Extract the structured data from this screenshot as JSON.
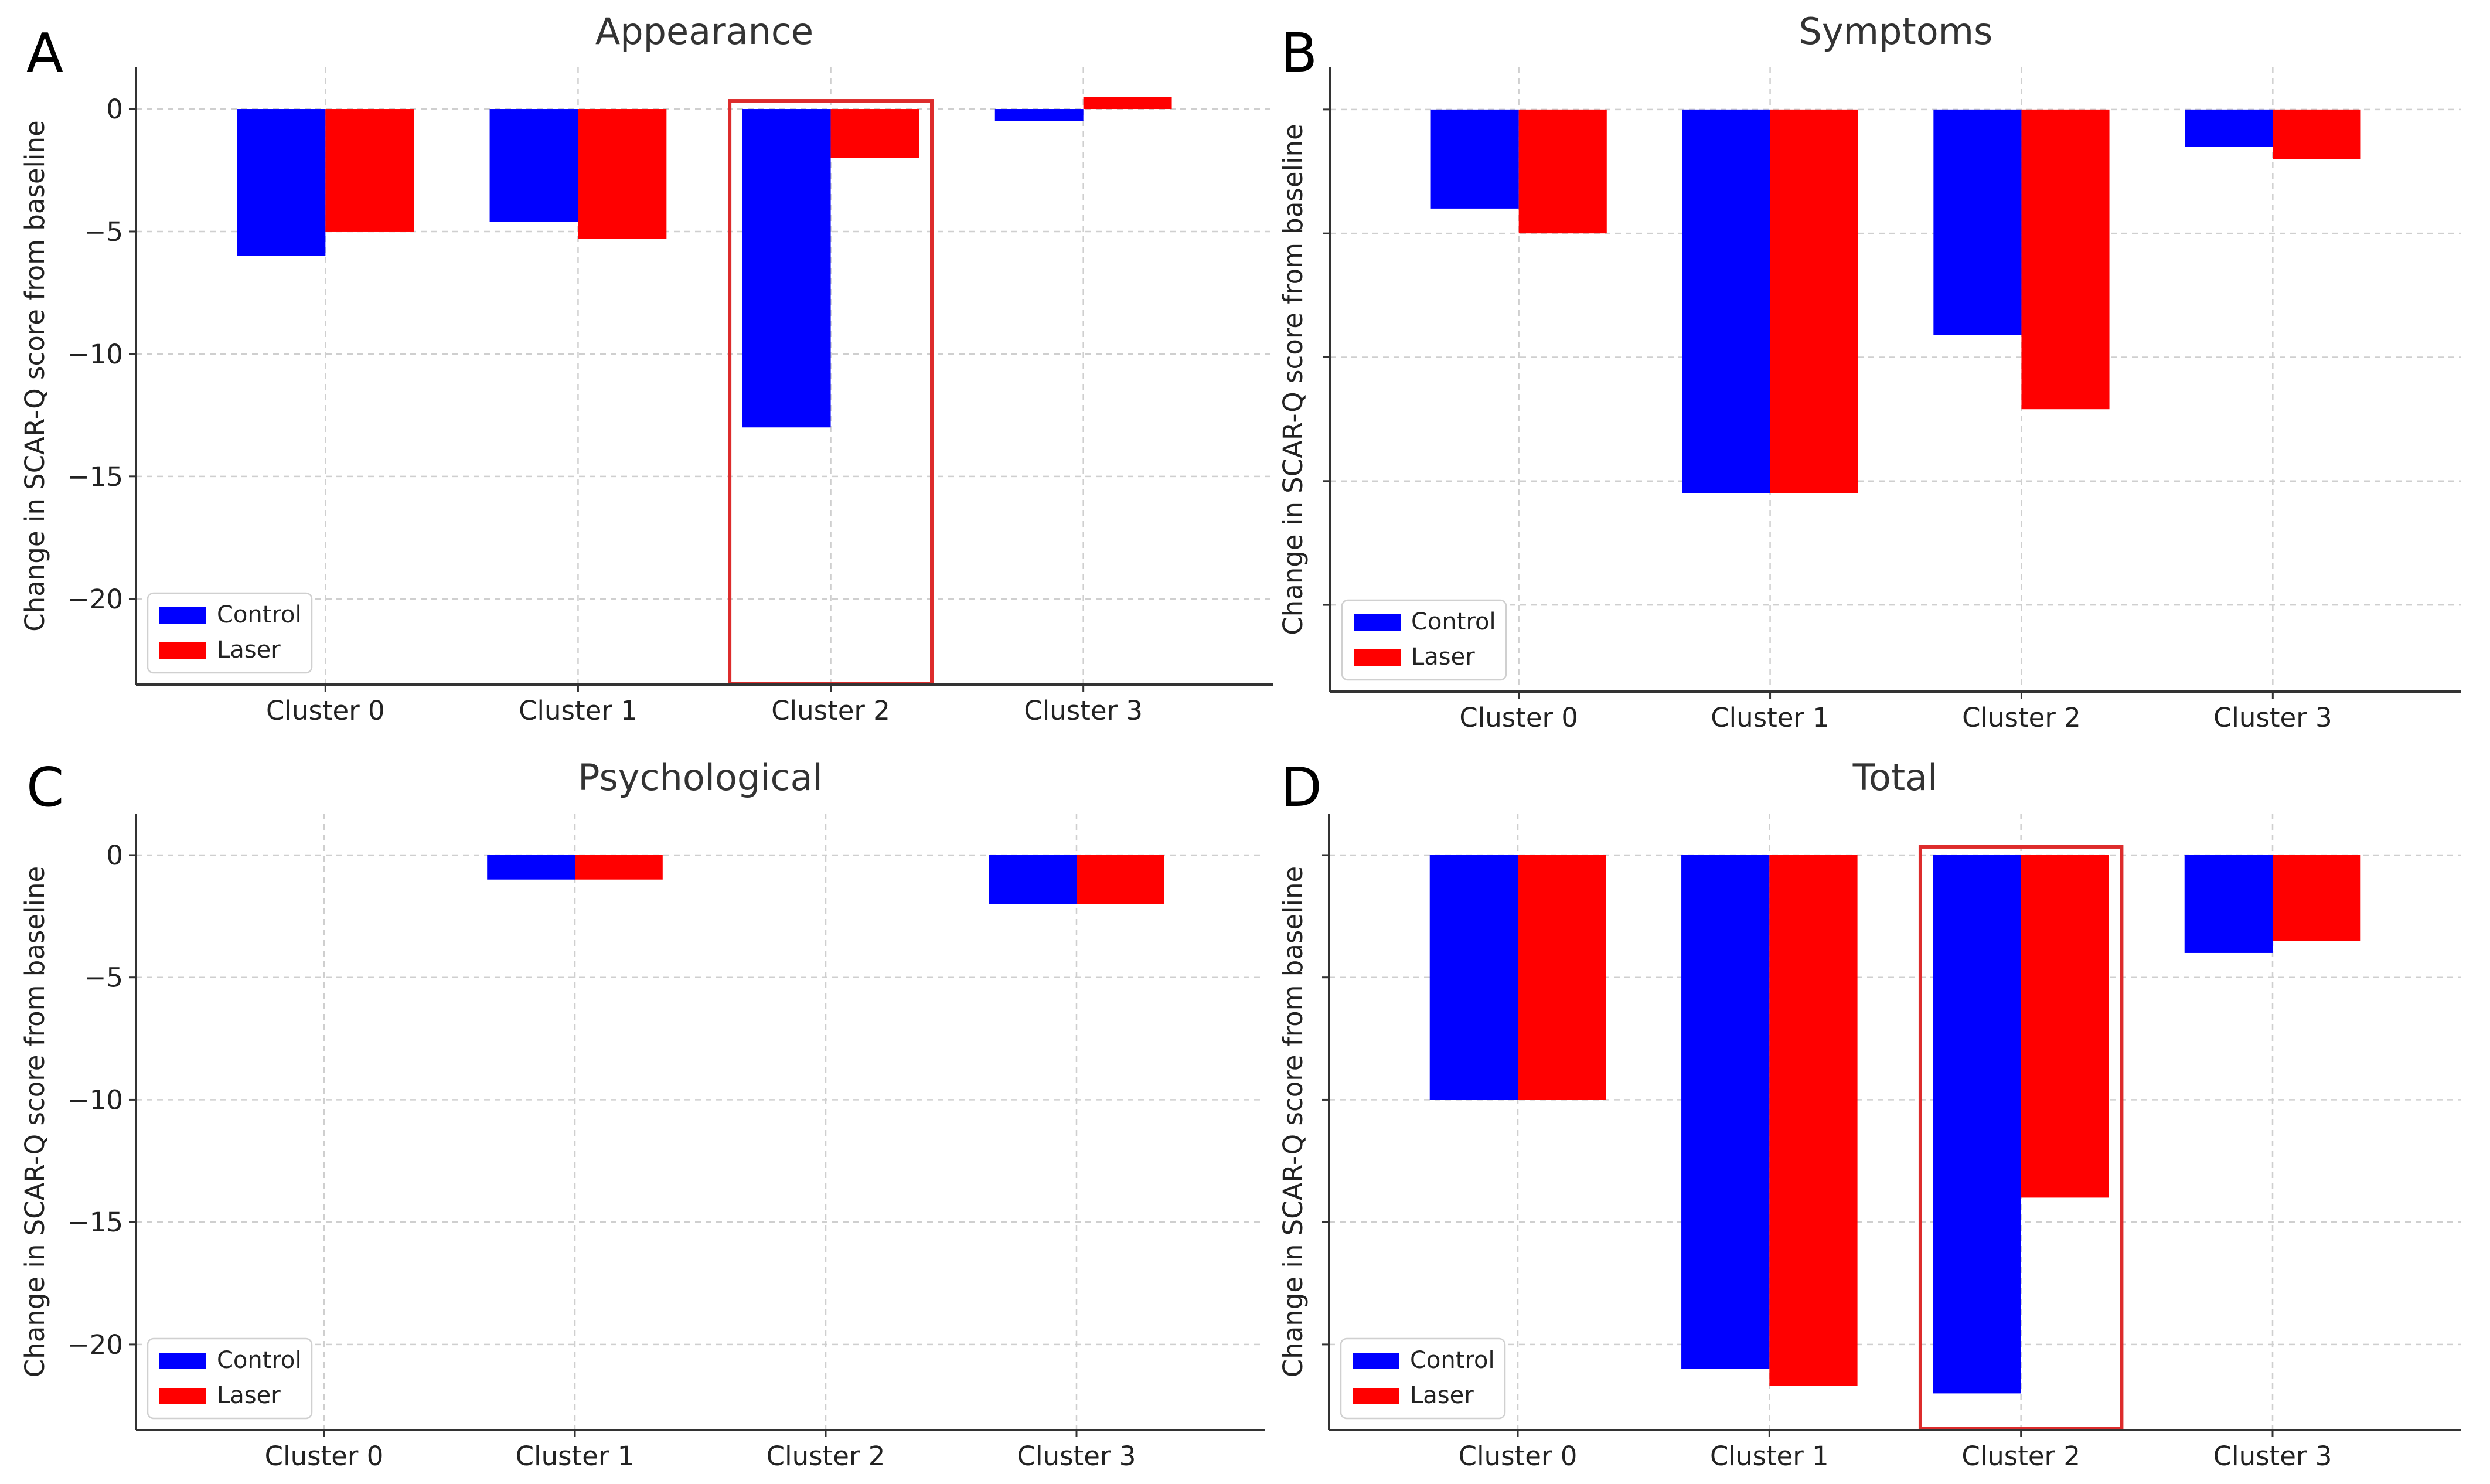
{
  "figure": {
    "colors": {
      "control": "#0000ff",
      "laser": "#ff0000",
      "highlight": "#dd2c2c"
    },
    "legend": [
      "Control",
      "Laser"
    ]
  },
  "chart_data": [
    {
      "panel": "A",
      "type": "bar",
      "title": "Appearance",
      "ylabel": "Change in SCAR-Q score from baseline",
      "xlabel": "",
      "categories": [
        "Cluster 0",
        "Cluster 1",
        "Cluster 2",
        "Cluster 3"
      ],
      "series": [
        {
          "name": "Control",
          "color": "#0000ff",
          "values": [
            -6,
            -4.6,
            -13,
            -0.5
          ]
        },
        {
          "name": "Laser",
          "color": "#ff0000",
          "values": [
            -5,
            -5.3,
            -2,
            0.5
          ]
        }
      ],
      "ylim": [
        -23.5,
        1.7
      ],
      "yticks": [
        0,
        -5,
        -10,
        -15,
        -20
      ],
      "ytick_labels": [
        "0",
        "−5",
        "−10",
        "−15",
        "−20"
      ],
      "grid": true,
      "legend_position": "lower-left",
      "highlight_category": "Cluster 2"
    },
    {
      "panel": "B",
      "type": "bar",
      "title": "Symptoms",
      "ylabel": "Change in SCAR-Q score from baseline",
      "xlabel": "",
      "categories": [
        "Cluster 0",
        "Cluster 1",
        "Cluster 2",
        "Cluster 3"
      ],
      "series": [
        {
          "name": "Control",
          "color": "#0000ff",
          "values": [
            -4,
            -15.5,
            -9.1,
            -1.5
          ]
        },
        {
          "name": "Laser",
          "color": "#ff0000",
          "values": [
            -5,
            -15.5,
            -12.1,
            -2
          ]
        }
      ],
      "ylim": [
        -23.5,
        1.7
      ],
      "yticks": [
        0,
        -5,
        -10,
        -15,
        -20
      ],
      "ytick_labels": [],
      "grid": true,
      "legend_position": "lower-left"
    },
    {
      "panel": "C",
      "type": "bar",
      "title": "Psychological",
      "ylabel": "Change in SCAR-Q score from baseline",
      "xlabel": "",
      "categories": [
        "Cluster 0",
        "Cluster 1",
        "Cluster 2",
        "Cluster 3"
      ],
      "series": [
        {
          "name": "Control",
          "color": "#0000ff",
          "values": [
            0,
            -1,
            0,
            -2
          ]
        },
        {
          "name": "Laser",
          "color": "#ff0000",
          "values": [
            0,
            -1,
            0,
            -2
          ]
        }
      ],
      "ylim": [
        -23.5,
        1.7
      ],
      "yticks": [
        0,
        -5,
        -10,
        -15,
        -20
      ],
      "ytick_labels": [
        "0",
        "−5",
        "−10",
        "−15",
        "−20"
      ],
      "grid": true,
      "legend_position": "lower-left"
    },
    {
      "panel": "D",
      "type": "bar",
      "title": "Total",
      "ylabel": "Change in SCAR-Q score from baseline",
      "xlabel": "",
      "categories": [
        "Cluster 0",
        "Cluster 1",
        "Cluster 2",
        "Cluster 3"
      ],
      "series": [
        {
          "name": "Control",
          "color": "#0000ff",
          "values": [
            -10,
            -21,
            -22,
            -4
          ]
        },
        {
          "name": "Laser",
          "color": "#ff0000",
          "values": [
            -10,
            -21.7,
            -14,
            -3.5
          ]
        }
      ],
      "ylim": [
        -23.5,
        1.7
      ],
      "yticks": [
        0,
        -5,
        -10,
        -15,
        -20
      ],
      "ytick_labels": [],
      "grid": true,
      "legend_position": "lower-left",
      "highlight_category": "Cluster 2"
    }
  ]
}
